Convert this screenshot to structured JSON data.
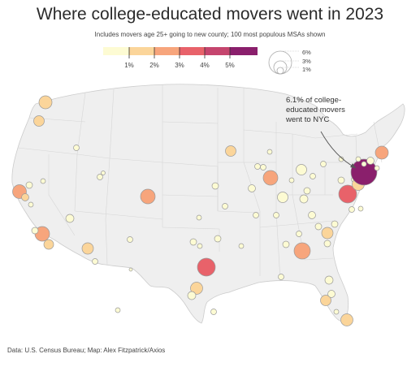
{
  "title": "Where college-educated movers went in 2023",
  "subtitle": "Includes movers age 25+ going to new county; 100 most populous MSAs shown",
  "color_legend": {
    "ticks": [
      "1%",
      "2%",
      "3%",
      "4%",
      "5%"
    ],
    "colors": [
      "#fdfbd3",
      "#fbd59a",
      "#f7a57c",
      "#e8626a",
      "#c5456e",
      "#8a1f6c"
    ]
  },
  "size_legend": {
    "labels": [
      "6%",
      "3%",
      "1%"
    ]
  },
  "annotation": {
    "line1": "6.1% of college-",
    "line2": "educated movers",
    "line3": "went to NYC"
  },
  "source": "Data: U.S. Census Bureau; Map: Alex Fitzpatrick/Axios"
}
